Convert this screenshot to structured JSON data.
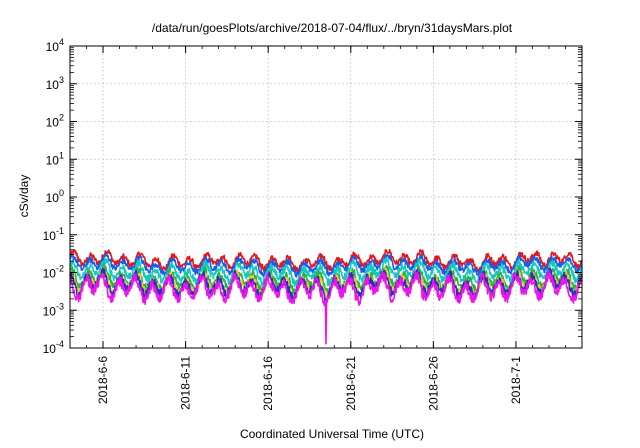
{
  "chart_data": {
    "type": "line",
    "title": "/data/run/goesPlots/archive/2018-07-04/flux/../bryn/31daysMars.plot",
    "xlabel": "Coordinated Universal Time (UTC)",
    "ylabel": "cSv/day",
    "yscale": "log",
    "ylim": [
      0.0001,
      10000
    ],
    "y_ticks": [
      {
        "base": "10",
        "exp": "-4"
      },
      {
        "base": "10",
        "exp": "-3"
      },
      {
        "base": "10",
        "exp": "-2"
      },
      {
        "base": "10",
        "exp": "-1"
      },
      {
        "base": "10",
        "exp": "0"
      },
      {
        "base": "10",
        "exp": "1"
      },
      {
        "base": "10",
        "exp": "2"
      },
      {
        "base": "10",
        "exp": "3"
      },
      {
        "base": "10",
        "exp": "4"
      }
    ],
    "xlim": [
      "2018-06-04",
      "2018-07-05"
    ],
    "x_ticks": [
      "2018-6-6",
      "2018-6-11",
      "2018-6-16",
      "2018-6-21",
      "2018-6-26",
      "2018-7-1"
    ],
    "grid": true,
    "legend": "none",
    "series": [
      {
        "color": "#e8161a",
        "level": 0.021,
        "amp": 0.13,
        "phase": 0.0
      },
      {
        "color": "#1a5ce8",
        "level": 0.016,
        "amp": 0.13,
        "phase": 0.3
      },
      {
        "color": "#12c9c0",
        "level": 0.0105,
        "amp": 0.16,
        "phase": 0.6
      },
      {
        "color": "#2bb04a",
        "level": 0.0065,
        "amp": 0.18,
        "phase": 0.9
      },
      {
        "color": "#e6d21a",
        "level": 0.0052,
        "amp": 0.19,
        "phase": 1.2
      },
      {
        "color": "#2a2fbf",
        "level": 0.0048,
        "amp": 0.2,
        "phase": 1.5
      },
      {
        "color": "#ef12ef",
        "level": 0.0038,
        "amp": 0.22,
        "phase": 1.8
      }
    ],
    "dip": {
      "x": "2018-06-19",
      "series": "#ef12ef",
      "y": 0.00013
    }
  }
}
